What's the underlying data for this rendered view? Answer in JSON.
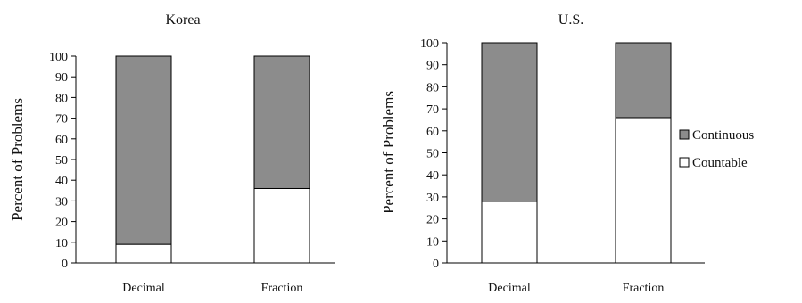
{
  "colors": {
    "continuous": "#8c8c8c",
    "countable": "#ffffff",
    "stroke": "#000000"
  },
  "legend": {
    "continuous_label": "Continuous",
    "countable_label": "Countable",
    "continuous_marker": "■",
    "countable_marker": "□"
  },
  "chart_data": [
    {
      "type": "bar",
      "stacked": true,
      "title": "Korea",
      "ylabel": "Percent of Problems",
      "xlabel": "",
      "categories": [
        "Decimal",
        "Fraction"
      ],
      "ylim": [
        0,
        100
      ],
      "yticks": [
        "0",
        "10",
        "20",
        "30",
        "40",
        "50",
        "60",
        "70",
        "80",
        "90",
        "100"
      ],
      "series": [
        {
          "name": "Countable",
          "values": [
            9,
            36
          ]
        },
        {
          "name": "Continuous",
          "values": [
            91,
            64
          ]
        }
      ]
    },
    {
      "type": "bar",
      "stacked": true,
      "title": "U.S.",
      "ylabel": "Percent of Problems",
      "xlabel": "",
      "categories": [
        "Decimal",
        "Fraction"
      ],
      "ylim": [
        0,
        100
      ],
      "yticks": [
        "0",
        "10",
        "20",
        "30",
        "40",
        "50",
        "60",
        "70",
        "80",
        "90",
        "100"
      ],
      "series": [
        {
          "name": "Countable",
          "values": [
            28,
            66
          ]
        },
        {
          "name": "Continuous",
          "values": [
            72,
            34
          ]
        }
      ],
      "legend_position": "right"
    }
  ]
}
